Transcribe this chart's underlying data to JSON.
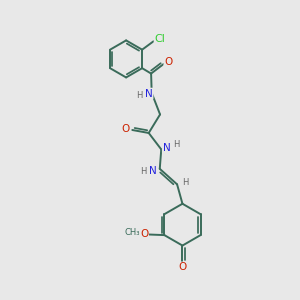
{
  "background_color": "#e8e8e8",
  "bond_color": "#3a6b5a",
  "cl_color": "#33cc33",
  "n_color": "#2222dd",
  "o_color": "#cc2200",
  "h_color": "#666666",
  "line_width": 1.4,
  "font_size_atom": 7.5,
  "font_size_small": 6.0,
  "xlim": [
    0,
    10
  ],
  "ylim": [
    0,
    10
  ]
}
